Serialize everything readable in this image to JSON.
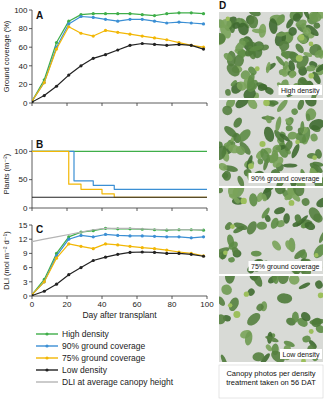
{
  "chart_data": [
    {
      "type": "line",
      "title": "A",
      "ylabel": "Ground coverage (%)",
      "x": [
        0,
        7,
        14,
        21,
        28,
        35,
        42,
        49,
        56,
        63,
        70,
        77,
        84,
        91,
        98
      ],
      "xlim": [
        0,
        100
      ],
      "xticks": [
        0,
        20,
        40,
        60,
        80,
        100
      ],
      "ylim": [
        0,
        100
      ],
      "yticks": [
        0,
        20,
        40,
        60,
        80,
        100
      ],
      "tick_labels": "y",
      "series": [
        {
          "color": "#3fae49",
          "marker": "circle",
          "line_style": "solid",
          "values": [
            2,
            25,
            65,
            88,
            95,
            96,
            96,
            96,
            96,
            95,
            94,
            96,
            97,
            97,
            96
          ]
        },
        {
          "color": "#3b8fd4",
          "marker": "circle",
          "line_style": "solid",
          "values": [
            2,
            22,
            60,
            85,
            93,
            92,
            90,
            88,
            90,
            90,
            88,
            86,
            87,
            86,
            85
          ]
        },
        {
          "color": "#f2b705",
          "marker": "circle",
          "line_style": "solid",
          "values": [
            2,
            22,
            58,
            82,
            75,
            72,
            78,
            76,
            74,
            72,
            70,
            68,
            65,
            62,
            60
          ]
        },
        {
          "color": "#222222",
          "marker": "circle",
          "line_style": "solid",
          "values": [
            1,
            8,
            18,
            30,
            40,
            48,
            52,
            57,
            62,
            64,
            63,
            62,
            63,
            62,
            58
          ]
        }
      ]
    },
    {
      "type": "line",
      "title": "B",
      "ylabel": "Plants (m⁻²)",
      "xlim": [
        0,
        100
      ],
      "xticks": [
        0,
        20,
        40,
        60,
        80,
        100
      ],
      "ylim": [
        0,
        120
      ],
      "yticks": [
        0,
        50,
        100
      ],
      "tick_labels": "y",
      "series": [
        {
          "color": "#3fae49",
          "marker": "none",
          "line_style": "solid",
          "x": [
            0,
            100
          ],
          "values": [
            100,
            100
          ]
        },
        {
          "color": "#3b8fd4",
          "marker": "none",
          "line_style": "solid",
          "x": [
            0,
            24,
            24,
            35,
            35,
            47,
            47,
            100
          ],
          "values": [
            100,
            100,
            48,
            48,
            40,
            40,
            33,
            33
          ]
        },
        {
          "color": "#f2b705",
          "marker": "none",
          "line_style": "solid",
          "x": [
            0,
            21,
            21,
            28,
            28,
            40,
            40,
            47,
            47,
            100
          ],
          "values": [
            100,
            100,
            42,
            42,
            33,
            33,
            25,
            25,
            19,
            19
          ]
        },
        {
          "color": "#222222",
          "marker": "none",
          "line_style": "solid",
          "x": [
            0,
            100
          ],
          "values": [
            19,
            19
          ]
        }
      ]
    },
    {
      "type": "line",
      "title": "C",
      "ylabel": "DLI (mol m⁻² d⁻¹)",
      "xlabel": "Day after transplant",
      "x": [
        0,
        7,
        14,
        21,
        28,
        35,
        42,
        49,
        56,
        63,
        70,
        77,
        84,
        91,
        98
      ],
      "xlim": [
        0,
        100
      ],
      "xticks": [
        0,
        20,
        40,
        60,
        80,
        100
      ],
      "ylim": [
        0,
        15
      ],
      "yticks": [
        0,
        3,
        6,
        9,
        12,
        15
      ],
      "series": [
        {
          "name": "High density",
          "color": "#3fae49",
          "marker": "circle",
          "line_style": "solid",
          "values": [
            0.3,
            3.5,
            9,
            12.5,
            13.5,
            13.8,
            14.3,
            14.2,
            14.2,
            14.1,
            14,
            13.9,
            14,
            14,
            13.9
          ]
        },
        {
          "name": "90% ground coverage",
          "color": "#3b8fd4",
          "marker": "circle",
          "line_style": "solid",
          "values": [
            0.3,
            3,
            8.5,
            12,
            12.8,
            12.5,
            13,
            12.8,
            12.7,
            12.7,
            12.6,
            12.5,
            12.5,
            12.3,
            12.5
          ]
        },
        {
          "name": "75% ground coverage",
          "color": "#f2b705",
          "marker": "circle",
          "line_style": "solid",
          "values": [
            0.3,
            3,
            8,
            11,
            10.5,
            10,
            11,
            10.8,
            10.5,
            10.2,
            10,
            9.7,
            9.3,
            9,
            8.5
          ]
        },
        {
          "name": "Low density",
          "color": "#222222",
          "marker": "circle",
          "line_style": "solid",
          "values": [
            0.1,
            1,
            2.5,
            4.5,
            6,
            7.5,
            8.2,
            8.8,
            9.2,
            9.3,
            9.2,
            9,
            9,
            8.8,
            8.4
          ]
        },
        {
          "name": "DLI at average canopy height",
          "color": "#b5b5b5",
          "marker": "none",
          "line_style": "solid",
          "values": [
            11.5,
            12,
            12.5,
            13,
            13.5,
            14,
            14.3,
            14.3,
            14.3,
            14.2,
            14.1,
            14,
            14,
            14,
            14
          ]
        }
      ]
    }
  ],
  "photos": {
    "label": "D",
    "panels": [
      "High density",
      "90% ground coverage",
      "75% ground coverage",
      "Low density"
    ],
    "caption": "Canopy photos per density treatment taken on 56 DAT"
  }
}
